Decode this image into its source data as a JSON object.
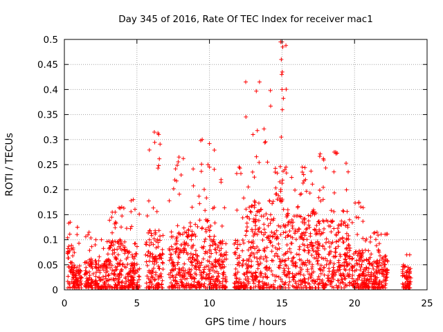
{
  "chart_data": {
    "type": "scatter",
    "title": "Day 345 of 2016, Rate Of TEC Index for receiver mac1",
    "xlabel": "GPS time / hours",
    "ylabel": "ROTI / TECUs",
    "xlim": [
      0,
      25
    ],
    "ylim": [
      0,
      0.5
    ],
    "x_ticks": [
      "0",
      "5",
      "10",
      "15",
      "20",
      "25"
    ],
    "y_ticks": [
      "0",
      "0.05",
      "0.1",
      "0.15",
      "0.2",
      "0.25",
      "0.3",
      "0.35",
      "0.4",
      "0.45",
      "0.5"
    ],
    "grid": true,
    "marker": "+",
    "marker_color": "#ff0000",
    "activity_profile": [
      {
        "x_start": 0.2,
        "x_end": 0.6,
        "typical_max": 0.09,
        "peak": 0.135
      },
      {
        "x_start": 0.6,
        "x_end": 1.2,
        "typical_max": 0.05,
        "peak": 0.125
      },
      {
        "x_start": 1.4,
        "x_end": 2.0,
        "typical_max": 0.06,
        "peak": 0.115
      },
      {
        "x_start": 2.1,
        "x_end": 3.0,
        "typical_max": 0.06,
        "peak": 0.1
      },
      {
        "x_start": 3.0,
        "x_end": 3.6,
        "typical_max": 0.1,
        "peak": 0.155
      },
      {
        "x_start": 3.6,
        "x_end": 4.3,
        "typical_max": 0.1,
        "peak": 0.165
      },
      {
        "x_start": 4.3,
        "x_end": 5.2,
        "typical_max": 0.08,
        "peak": 0.18
      },
      {
        "x_start": 5.6,
        "x_end": 6.8,
        "typical_max": 0.12,
        "peak": 0.315
      },
      {
        "x_start": 7.2,
        "x_end": 8.6,
        "typical_max": 0.12,
        "peak": 0.265
      },
      {
        "x_start": 8.6,
        "x_end": 10.4,
        "typical_max": 0.14,
        "peak": 0.3
      },
      {
        "x_start": 10.4,
        "x_end": 11.2,
        "typical_max": 0.1,
        "peak": 0.22
      },
      {
        "x_start": 11.7,
        "x_end": 12.4,
        "typical_max": 0.1,
        "peak": 0.245
      },
      {
        "x_start": 12.4,
        "x_end": 14.5,
        "typical_max": 0.18,
        "peak": 0.415
      },
      {
        "x_start": 14.5,
        "x_end": 15.3,
        "typical_max": 0.25,
        "peak": 0.495
      },
      {
        "x_start": 15.3,
        "x_end": 17.5,
        "typical_max": 0.16,
        "peak": 0.245
      },
      {
        "x_start": 17.5,
        "x_end": 19.7,
        "typical_max": 0.14,
        "peak": 0.275
      },
      {
        "x_start": 19.8,
        "x_end": 20.8,
        "typical_max": 0.08,
        "peak": 0.175
      },
      {
        "x_start": 20.8,
        "x_end": 22.3,
        "typical_max": 0.07,
        "peak": 0.115
      },
      {
        "x_start": 23.3,
        "x_end": 23.9,
        "typical_max": 0.05,
        "peak": 0.07
      }
    ],
    "notable_points": [
      {
        "x": 15.0,
        "y": 0.495
      },
      {
        "x": 15.05,
        "y": 0.485
      },
      {
        "x": 14.95,
        "y": 0.46
      },
      {
        "x": 15.02,
        "y": 0.435
      },
      {
        "x": 14.98,
        "y": 0.43
      },
      {
        "x": 15.0,
        "y": 0.4
      },
      {
        "x": 12.5,
        "y": 0.415
      },
      {
        "x": 14.2,
        "y": 0.398
      },
      {
        "x": 13.3,
        "y": 0.318
      },
      {
        "x": 13.0,
        "y": 0.31
      },
      {
        "x": 6.45,
        "y": 0.313
      },
      {
        "x": 6.5,
        "y": 0.31
      },
      {
        "x": 9.4,
        "y": 0.298
      },
      {
        "x": 10.0,
        "y": 0.292
      },
      {
        "x": 14.95,
        "y": 0.305
      },
      {
        "x": 18.7,
        "y": 0.275
      },
      {
        "x": 18.8,
        "y": 0.273
      },
      {
        "x": 8.2,
        "y": 0.262
      },
      {
        "x": 6.5,
        "y": 0.248
      },
      {
        "x": 6.45,
        "y": 0.243
      },
      {
        "x": 9.9,
        "y": 0.25
      },
      {
        "x": 10.0,
        "y": 0.245
      },
      {
        "x": 10.8,
        "y": 0.215
      },
      {
        "x": 12.1,
        "y": 0.243
      },
      {
        "x": 14.0,
        "y": 0.255
      },
      {
        "x": 15.2,
        "y": 0.24
      },
      {
        "x": 16.4,
        "y": 0.235
      },
      {
        "x": 17.0,
        "y": 0.237
      },
      {
        "x": 4.6,
        "y": 0.178
      },
      {
        "x": 4.1,
        "y": 0.163
      },
      {
        "x": 3.5,
        "y": 0.155
      },
      {
        "x": 0.3,
        "y": 0.133
      },
      {
        "x": 0.9,
        "y": 0.125
      },
      {
        "x": 20.3,
        "y": 0.173
      },
      {
        "x": 21.4,
        "y": 0.114
      },
      {
        "x": 23.8,
        "y": 0.07
      }
    ]
  }
}
